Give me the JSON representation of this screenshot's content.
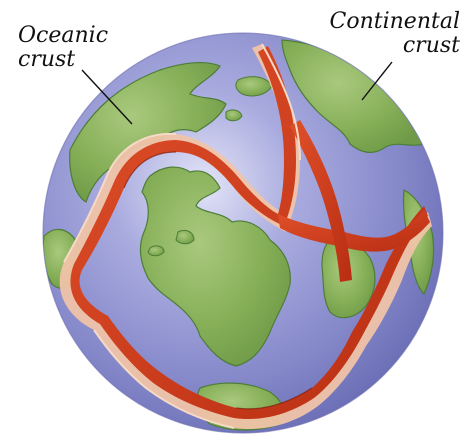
{
  "labels": {
    "oceanic": {
      "line1": "Oceanic",
      "line2": "crust"
    },
    "continental": {
      "line1": "Continental",
      "line2": "crust"
    }
  },
  "colors": {
    "ocean": "#8f92cf",
    "ocean_highlight": "#d4d6f2",
    "continent": "#82ad55",
    "continent_outline": "#4d7d38",
    "ridge": "#d43d1a",
    "ridge_dark": "#a32310",
    "plate_edge": "#efc3a8"
  },
  "icons": {
    "globe": "earth-globe-cutaway"
  }
}
